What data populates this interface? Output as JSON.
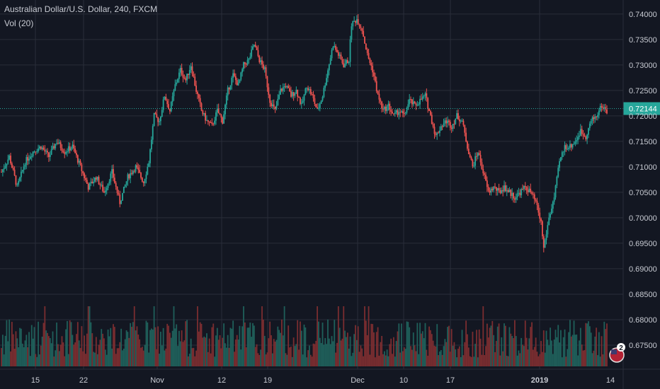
{
  "header": {
    "symbol_title": "Australian Dollar/U.S. Dollar, 240, FXCM",
    "volume_label": "Vol (20)"
  },
  "colors": {
    "background": "#131722",
    "grid": "#2a2e39",
    "up": "#26a69a",
    "down": "#ef5350",
    "up_volume": "#1f5f5a",
    "down_volume": "#7a2d30",
    "axis_text": "#c8cbd3",
    "price_line": "#26a69a"
  },
  "chart_data": {
    "type": "candlestick",
    "symbol": "AUDUSD",
    "timeframe": "240",
    "source": "FXCM",
    "x_tick_labels": [
      "15",
      "22",
      "Nov",
      "12",
      "19",
      "Dec",
      "10",
      "17",
      "2019",
      "14"
    ],
    "y_tick_labels": [
      "0.74000",
      "0.73500",
      "0.73000",
      "0.72500",
      "0.72000",
      "0.71500",
      "0.71000",
      "0.70500",
      "0.70000",
      "0.69500",
      "0.69000",
      "0.68500",
      "0.68000",
      "0.67500"
    ],
    "ylim": [
      0.6718,
      0.7422
    ],
    "last_price": 0.72144,
    "last_price_label": "0.72144",
    "price_path": [
      [
        0,
        0.709
      ],
      [
        3,
        0.712
      ],
      [
        6,
        0.706
      ],
      [
        9,
        0.711
      ],
      [
        12,
        0.713
      ],
      [
        15,
        0.714
      ],
      [
        18,
        0.712
      ],
      [
        21,
        0.715
      ],
      [
        24,
        0.713
      ],
      [
        27,
        0.714
      ],
      [
        30,
        0.71
      ],
      [
        33,
        0.706
      ],
      [
        36,
        0.708
      ],
      [
        39,
        0.705
      ],
      [
        42,
        0.709
      ],
      [
        45,
        0.703
      ],
      [
        48,
        0.708
      ],
      [
        51,
        0.71
      ],
      [
        54,
        0.707
      ],
      [
        56,
        0.711
      ],
      [
        58,
        0.72
      ],
      [
        60,
        0.719
      ],
      [
        62,
        0.724
      ],
      [
        64,
        0.721
      ],
      [
        66,
        0.726
      ],
      [
        68,
        0.729
      ],
      [
        70,
        0.727
      ],
      [
        72,
        0.73
      ],
      [
        74,
        0.725
      ],
      [
        76,
        0.721
      ],
      [
        78,
        0.719
      ],
      [
        80,
        0.718
      ],
      [
        82,
        0.721
      ],
      [
        84,
        0.719
      ],
      [
        86,
        0.725
      ],
      [
        88,
        0.728
      ],
      [
        90,
        0.726
      ],
      [
        92,
        0.73
      ],
      [
        94,
        0.731
      ],
      [
        96,
        0.734
      ],
      [
        98,
        0.731
      ],
      [
        100,
        0.729
      ],
      [
        102,
        0.723
      ],
      [
        104,
        0.721
      ],
      [
        106,
        0.725
      ],
      [
        108,
        0.726
      ],
      [
        110,
        0.724
      ],
      [
        112,
        0.725
      ],
      [
        114,
        0.722
      ],
      [
        116,
        0.726
      ],
      [
        118,
        0.724
      ],
      [
        120,
        0.721
      ],
      [
        122,
        0.724
      ],
      [
        124,
        0.729
      ],
      [
        126,
        0.734
      ],
      [
        128,
        0.732
      ],
      [
        130,
        0.73
      ],
      [
        132,
        0.731
      ],
      [
        133,
        0.738
      ],
      [
        135,
        0.739
      ],
      [
        137,
        0.737
      ],
      [
        139,
        0.732
      ],
      [
        141,
        0.729
      ],
      [
        143,
        0.724
      ],
      [
        145,
        0.721
      ],
      [
        147,
        0.722
      ],
      [
        149,
        0.72
      ],
      [
        151,
        0.721
      ],
      [
        153,
        0.72
      ],
      [
        155,
        0.723
      ],
      [
        157,
        0.722
      ],
      [
        159,
        0.723
      ],
      [
        161,
        0.724
      ],
      [
        163,
        0.72
      ],
      [
        165,
        0.716
      ],
      [
        167,
        0.718
      ],
      [
        169,
        0.719
      ],
      [
        171,
        0.718
      ],
      [
        173,
        0.72
      ],
      [
        175,
        0.719
      ],
      [
        177,
        0.714
      ],
      [
        179,
        0.71
      ],
      [
        181,
        0.713
      ],
      [
        183,
        0.709
      ],
      [
        185,
        0.705
      ],
      [
        187,
        0.706
      ],
      [
        189,
        0.705
      ],
      [
        191,
        0.706
      ],
      [
        193,
        0.705
      ],
      [
        195,
        0.704
      ],
      [
        197,
        0.705
      ],
      [
        199,
        0.706
      ],
      [
        201,
        0.705
      ],
      [
        203,
        0.703
      ],
      [
        205,
        0.699
      ],
      [
        206,
        0.694
      ],
      [
        208,
        0.7
      ],
      [
        210,
        0.704
      ],
      [
        212,
        0.711
      ],
      [
        214,
        0.714
      ],
      [
        216,
        0.714
      ],
      [
        218,
        0.715
      ],
      [
        220,
        0.717
      ],
      [
        222,
        0.716
      ],
      [
        224,
        0.719
      ],
      [
        226,
        0.72
      ],
      [
        228,
        0.722
      ],
      [
        230,
        0.721
      ]
    ],
    "volume_relative_range": [
      0.15,
      1.0
    ]
  }
}
